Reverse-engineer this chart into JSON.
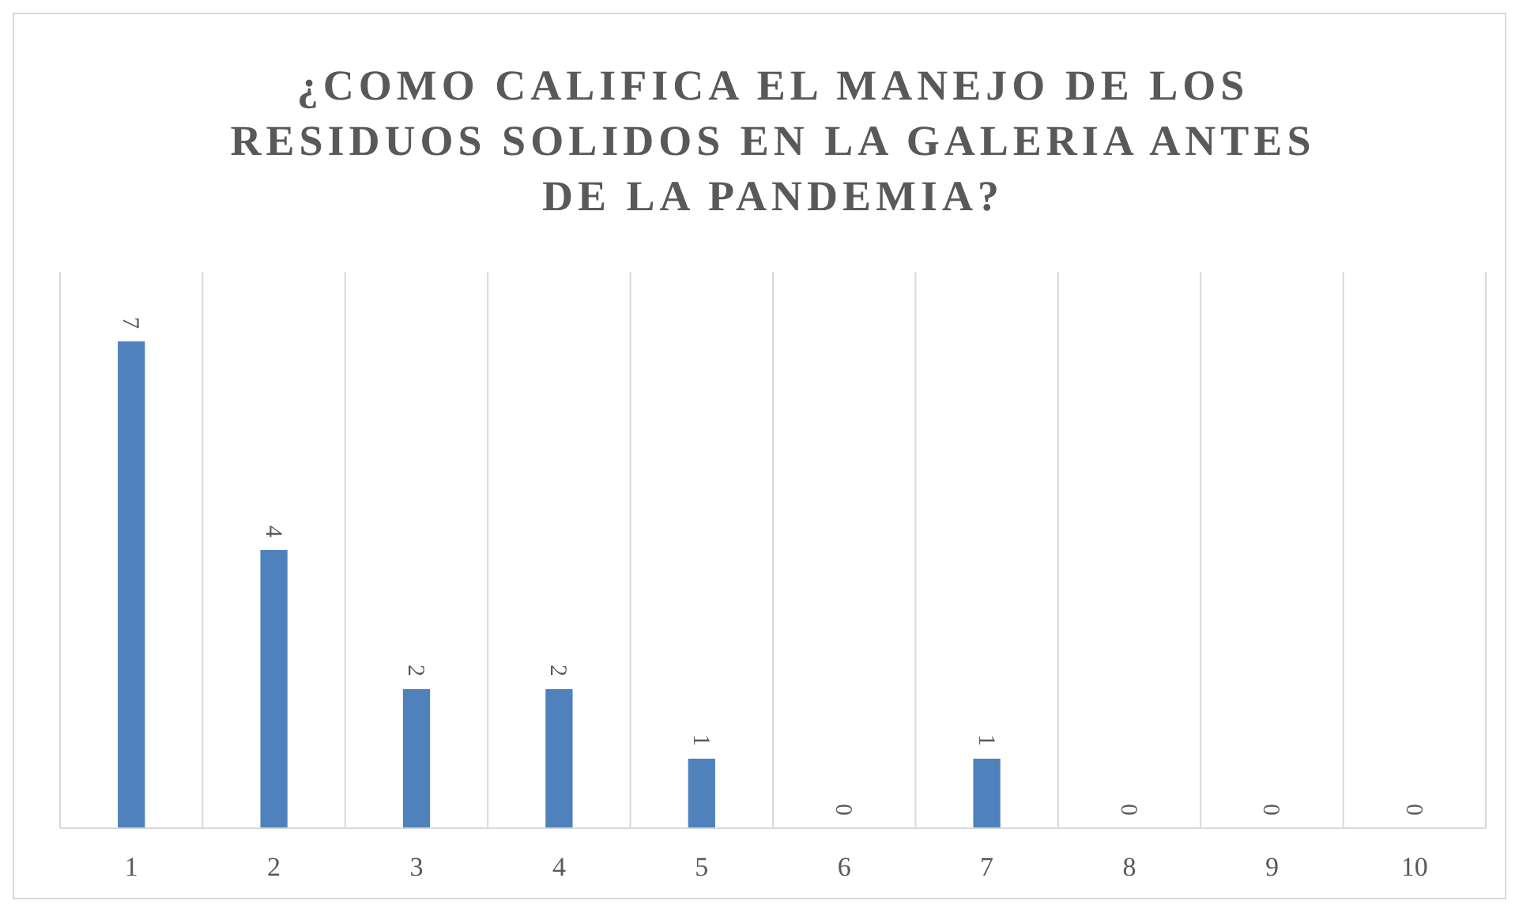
{
  "chart_data": {
    "type": "bar",
    "title": "¿COMO CALIFICA EL MANEJO DE LOS RESIDUOS SOLIDOS EN LA GALERIA ANTES DE LA PANDEMIA?",
    "categories": [
      "1",
      "2",
      "3",
      "4",
      "5",
      "6",
      "7",
      "8",
      "9",
      "10"
    ],
    "values": [
      7,
      4,
      2,
      2,
      1,
      0,
      1,
      0,
      0,
      0
    ],
    "color": "#4f81bd",
    "data_labels": true,
    "grid": "x"
  }
}
